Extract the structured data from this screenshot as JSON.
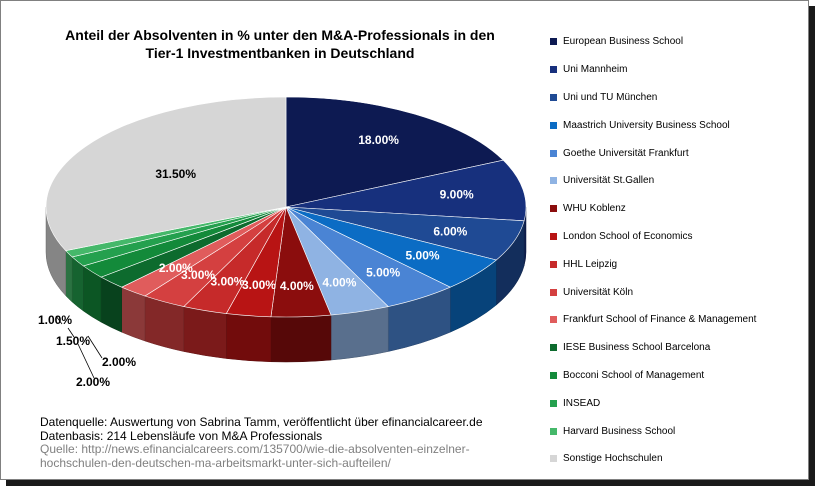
{
  "title_line1": "Anteil der Absolventen in % unter den M&A-Professionals in den",
  "title_line2": "Tier-1 Investmentbanken in Deutschland",
  "chart_data": {
    "type": "pie",
    "title": "Anteil der Absolventen in % unter den M&A-Professionals in den Tier-1 Investmentbanken in Deutschland",
    "legend_position": "right",
    "slices": [
      {
        "label": "European Business School",
        "value": 18.0,
        "display": "18.00%",
        "color": "#0d1a52"
      },
      {
        "label": "Uni Mannheim",
        "value": 9.0,
        "display": "9.00%",
        "color": "#17307d"
      },
      {
        "label": "Uni und TU München",
        "value": 6.0,
        "display": "6.00%",
        "color": "#1f4a94"
      },
      {
        "label": "Maastrich University Business School",
        "value": 5.0,
        "display": "5.00%",
        "color": "#0b6cc4"
      },
      {
        "label": "Goethe Universität Frankfurt",
        "value": 5.0,
        "display": "5.00%",
        "color": "#4a84d4"
      },
      {
        "label": "Universität St.Gallen",
        "value": 4.0,
        "display": "4.00%",
        "color": "#8fb3e3"
      },
      {
        "label": "WHU Koblenz",
        "value": 4.0,
        "display": "4.00%",
        "color": "#8b0d0d"
      },
      {
        "label": "London School of Economics",
        "value": 3.0,
        "display": "3.00%",
        "color": "#b81414"
      },
      {
        "label": "HHL Leipzig",
        "value": 3.0,
        "display": "3.00%",
        "color": "#c62a2a"
      },
      {
        "label": "Universität Köln",
        "value": 3.0,
        "display": "3.00%",
        "color": "#d44040"
      },
      {
        "label": "Frankfurt School of Finance & Management",
        "value": 2.0,
        "display": "2.00%",
        "color": "#e05c5c"
      },
      {
        "label": "IESE Business School Barcelona",
        "value": 2.0,
        "display": "2.00%",
        "color": "#0d6b2e"
      },
      {
        "label": "Bocconi School of Management",
        "value": 2.0,
        "display": "2.00%",
        "color": "#138a3a"
      },
      {
        "label": "INSEAD",
        "value": 1.5,
        "display": "1.50%",
        "color": "#24a04e"
      },
      {
        "label": "Harvard Business School",
        "value": 1.0,
        "display": "1.00%",
        "color": "#45b86a"
      },
      {
        "label": "Sonstige Hochschulen",
        "value": 31.5,
        "display": "31.50%",
        "color": "#d6d6d6"
      }
    ]
  },
  "source": {
    "line1": "Datenquelle:  Auswertung von Sabrina Tamm, veröffentlicht  über efinancialcareer.de",
    "line2": "Datenbasis: 214 Lebensläufe von  M&A Professionals",
    "line3": "Quelle: http://news.efinancialcareers.com/135700/wie-die-absolventen-einzelner-",
    "line4": "hochschulen-den-deutschen-ma-arbeitsmarkt-unter-sich-aufteilen/"
  }
}
